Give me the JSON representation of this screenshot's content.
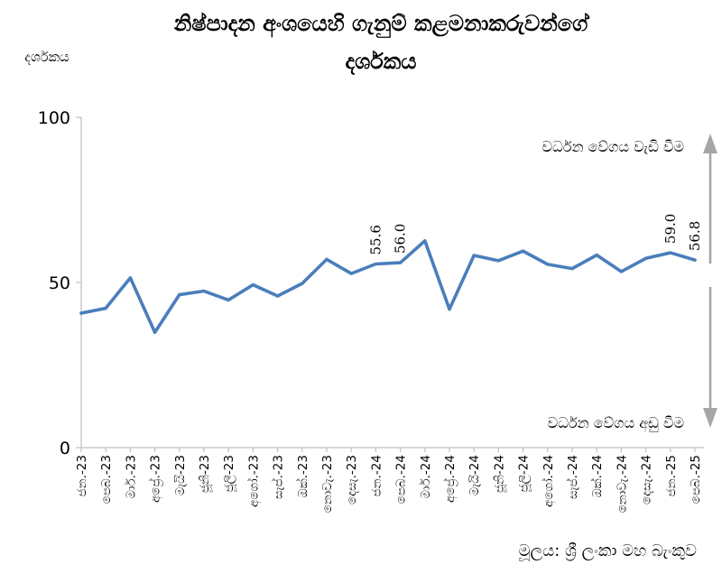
{
  "chart_data": {
    "type": "line",
    "title_lines": [
      "නිෂ්පාදන අංශයෙහි ගැනුම් කළමනාකරුවන්ගේ",
      "දර්ශකය"
    ],
    "ylabel": "දර්ශකය",
    "xlabel": "",
    "ylim": [
      0,
      100
    ],
    "yticks": [
      0,
      50,
      100
    ],
    "grid": false,
    "categories": [
      "ජන.-23",
      "පෙබ.-23",
      "මාර්.-23",
      "අප්‍රේ.-23",
      "මැයි-23",
      "ජූනි-23",
      "ජූලි-23",
      "අගෝ.-23",
      "සැප්.-23",
      "ඔක්.-23",
      "නොවැ.-23",
      "දෙසැ.-23",
      "ජන.-24",
      "පෙබ.-24",
      "මාර්.-24",
      "අප්‍රේ.-24",
      "මැයි-24",
      "ජූනි-24",
      "ජූලි-24",
      "අගෝ.-24",
      "සැප්.-24",
      "ඔක්.-24",
      "නොවැ.-24",
      "දෙසැ.-24",
      "ජන.-25",
      "පෙබ.-25"
    ],
    "series": [
      {
        "color": "#4a7ebb",
        "values": [
          40.7,
          42.2,
          51.4,
          34.9,
          46.3,
          47.4,
          44.7,
          49.3,
          45.9,
          49.7,
          57.0,
          52.7,
          55.6,
          56.0,
          62.6,
          41.9,
          58.2,
          56.6,
          59.5,
          55.5,
          54.2,
          58.3,
          53.3,
          57.3,
          59.0,
          56.8
        ]
      }
    ],
    "data_labels": [
      {
        "index": 12,
        "text": "55.6"
      },
      {
        "index": 13,
        "text": "56.0"
      },
      {
        "index": 24,
        "text": "59.0"
      },
      {
        "index": 25,
        "text": "56.8"
      }
    ],
    "annotations": {
      "up": "වර්ධන වේගය වැඩි වීම",
      "down": "වර්ධන වේගය අඩු වීම"
    },
    "source": "මූලය: ශ්‍රී ලංකා මහ බැංකුව",
    "colors": {
      "line": "#4a7ebb",
      "axis": "#bfbfbf",
      "arrow": "#a6a6a6"
    }
  }
}
